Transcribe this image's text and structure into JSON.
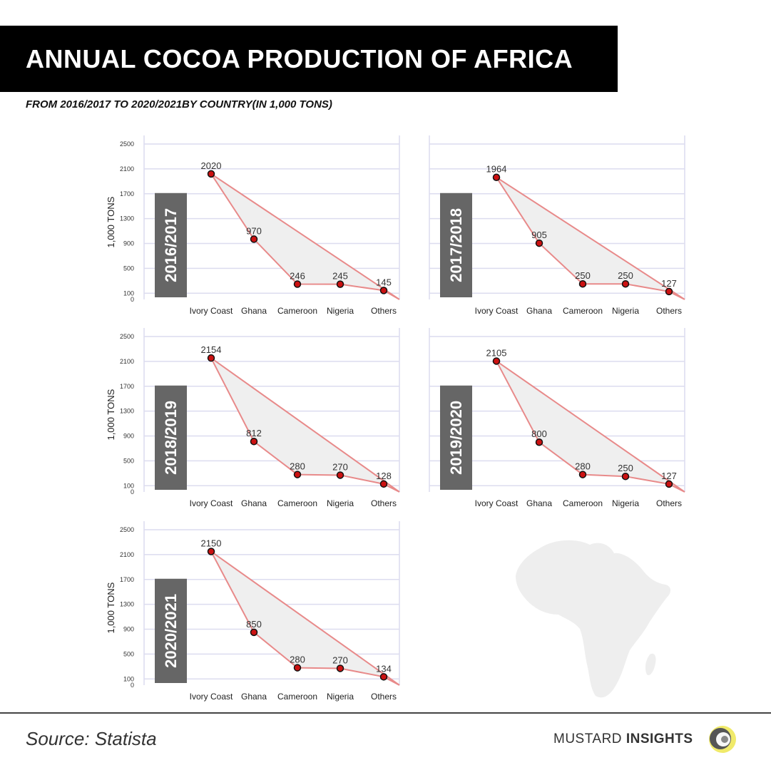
{
  "header": {
    "title": "ANNUAL COCOA PRODUCTION OF AFRICA",
    "subtitle": "FROM 2016/2017 TO 2020/2021BY COUNTRY(IN 1,000 TONS)"
  },
  "footer": {
    "source": "Source: Statista",
    "brand_regular": "MUSTARD ",
    "brand_bold": "INSIGHTS"
  },
  "colors": {
    "line": "#e88a8a",
    "marker": "#cc1111",
    "fill": "#efefef",
    "grid": "#dcdcef",
    "year_label_bg": "#666666"
  },
  "chart_data": [
    {
      "type": "line",
      "year": "2016/2017",
      "ylabel": "1,000 TONS",
      "categories": [
        "Ivory Coast",
        "Ghana",
        "Cameroon",
        "Nigeria",
        "Others"
      ],
      "values": [
        2020,
        970,
        246,
        245,
        145
      ],
      "data_labels": [
        "2020",
        "970",
        "246",
        "245",
        "145"
      ],
      "yticks": [
        0,
        100,
        500,
        900,
        1300,
        1700,
        2100,
        2500
      ],
      "ylim": [
        0,
        2500
      ],
      "grid": true
    },
    {
      "type": "line",
      "year": "2017/2018",
      "ylabel": "",
      "categories": [
        "Ivory Coast",
        "Ghana",
        "Cameroon",
        "Nigeria",
        "Others"
      ],
      "values": [
        1964,
        905,
        250,
        250,
        127
      ],
      "data_labels": [
        "1964",
        "905",
        "250",
        "250",
        "127"
      ],
      "yticks": [],
      "ylim": [
        0,
        2500
      ],
      "grid": true
    },
    {
      "type": "line",
      "year": "2018/2019",
      "ylabel": "1,000 TONS",
      "categories": [
        "Ivory Coast",
        "Ghana",
        "Cameroon",
        "Nigeria",
        "Others"
      ],
      "values": [
        2154,
        812,
        280,
        270,
        128
      ],
      "data_labels": [
        "2154",
        "812",
        "280",
        "270",
        "128"
      ],
      "yticks": [
        0,
        100,
        500,
        900,
        1300,
        1700,
        2100,
        2500
      ],
      "ylim": [
        0,
        2500
      ],
      "grid": true
    },
    {
      "type": "line",
      "year": "2019/2020",
      "ylabel": "",
      "categories": [
        "Ivory Coast",
        "Ghana",
        "Cameroon",
        "Nigeria",
        "Others"
      ],
      "values": [
        2105,
        800,
        280,
        250,
        127
      ],
      "data_labels": [
        "2105",
        "800",
        "280",
        "250",
        "127"
      ],
      "yticks": [],
      "ylim": [
        0,
        2500
      ],
      "grid": true
    },
    {
      "type": "line",
      "year": "2020/2021",
      "ylabel": "1,000 TONS",
      "categories": [
        "Ivory Coast",
        "Ghana",
        "Cameroon",
        "Nigeria",
        "Others"
      ],
      "values": [
        2150,
        850,
        280,
        270,
        134
      ],
      "data_labels": [
        "2150",
        "850",
        "280",
        "270",
        "134"
      ],
      "yticks": [
        0,
        100,
        500,
        900,
        1300,
        1700,
        2100,
        2500
      ],
      "ylim": [
        0,
        2500
      ],
      "grid": true
    }
  ]
}
